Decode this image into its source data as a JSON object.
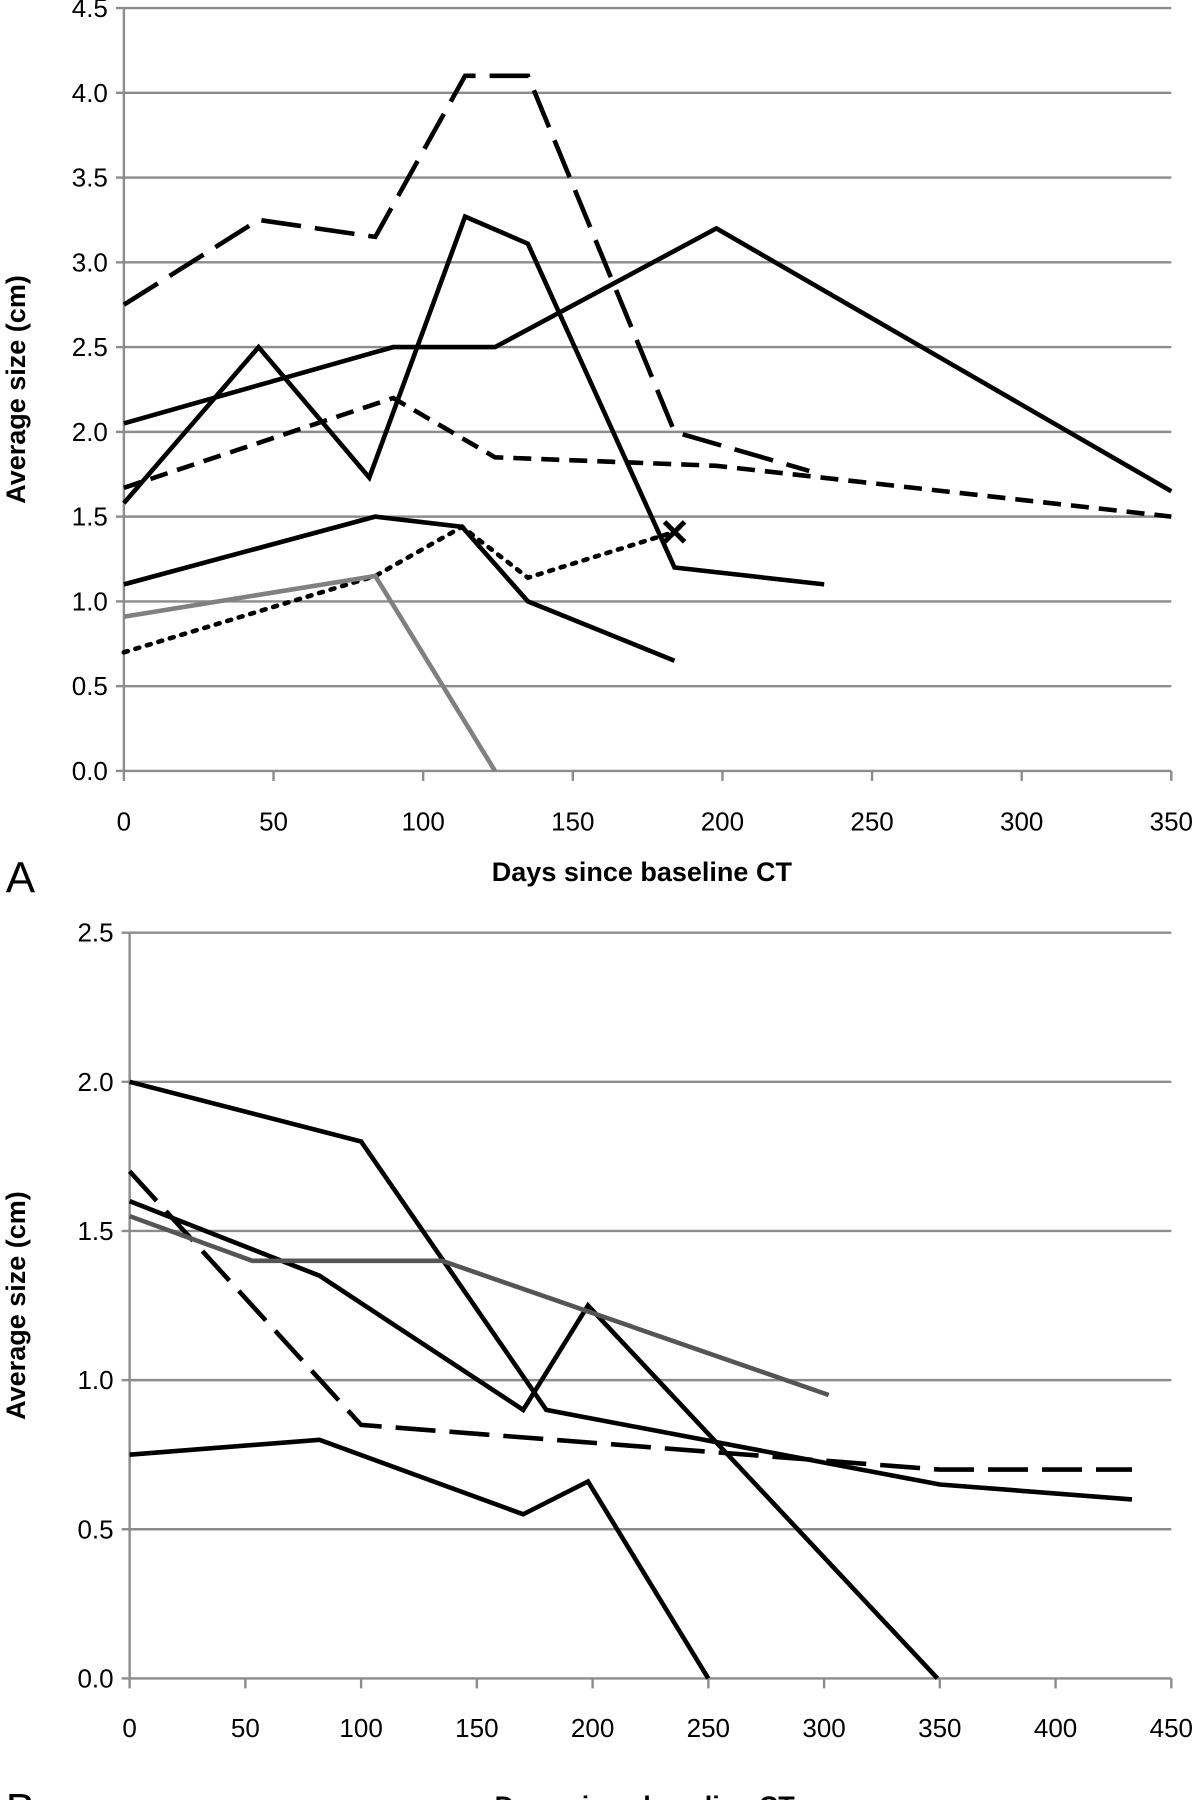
{
  "chart_data": [
    {
      "type": "line",
      "panel": "A",
      "xlabel": "Days since baseline CT",
      "ylabel": "Average size (cm)",
      "xlim": [
        0,
        350
      ],
      "ylim": [
        0,
        4.5
      ],
      "xticks": [
        0,
        50,
        100,
        150,
        200,
        250,
        300,
        350
      ],
      "yticks": [
        "0.0",
        "0.5",
        "1.0",
        "1.5",
        "2.0",
        "2.5",
        "3.0",
        "3.5",
        "4.0",
        "4.5"
      ],
      "grid": "horizontal",
      "series": [
        {
          "color": "#000000",
          "dash": "long-dash",
          "points": [
            [
              0,
              2.75
            ],
            [
              45,
              3.25
            ],
            [
              84,
              3.15
            ],
            [
              114,
              4.1
            ],
            [
              135,
              4.1
            ],
            [
              184,
              2.0
            ],
            [
              229,
              1.77
            ]
          ]
        },
        {
          "color": "#000000",
          "dash": "solid",
          "points": [
            [
              0,
              2.05
            ],
            [
              90,
              2.5
            ],
            [
              124,
              2.5
            ],
            [
              198,
              3.2
            ],
            [
              350,
              1.65
            ]
          ]
        },
        {
          "color": "#000000",
          "dash": "solid",
          "points": [
            [
              0,
              1.58
            ],
            [
              45,
              2.5
            ],
            [
              82,
              1.73
            ],
            [
              114,
              3.27
            ],
            [
              135,
              3.11
            ],
            [
              184,
              1.2
            ],
            [
              234,
              1.1
            ]
          ]
        },
        {
          "color": "#000000",
          "dash": "short-dash",
          "points": [
            [
              0,
              1.67
            ],
            [
              90,
              2.2
            ],
            [
              124,
              1.85
            ],
            [
              198,
              1.8
            ],
            [
              350,
              1.5
            ]
          ]
        },
        {
          "color": "#000000",
          "dash": "solid",
          "points": [
            [
              0,
              1.1
            ],
            [
              84,
              1.5
            ],
            [
              113,
              1.44
            ],
            [
              135,
              1.0
            ],
            [
              184,
              0.65
            ]
          ]
        },
        {
          "color": "#000000",
          "dash": "dotted",
          "points": [
            [
              0,
              0.7
            ],
            [
              84,
              1.15
            ],
            [
              113,
              1.44
            ],
            [
              135,
              1.14
            ],
            [
              184,
              1.41
            ]
          ],
          "end_marker": "x"
        },
        {
          "color": "#808080",
          "dash": "solid",
          "points": [
            [
              0,
              0.91
            ],
            [
              84,
              1.15
            ],
            [
              124,
              0.0
            ]
          ]
        }
      ],
      "letter": "A"
    },
    {
      "type": "line",
      "panel": "B",
      "xlabel": "Days since baseline CT",
      "ylabel": "Average size (cm)",
      "xlim": [
        0,
        450
      ],
      "ylim": [
        0,
        2.5
      ],
      "xticks": [
        0,
        50,
        100,
        150,
        200,
        250,
        300,
        350,
        400,
        450
      ],
      "yticks": [
        "0.0",
        "0.5",
        "1.0",
        "1.5",
        "2.0",
        "2.5"
      ],
      "grid": "horizontal",
      "series": [
        {
          "color": "#000000",
          "dash": "solid",
          "points": [
            [
              0,
              2.0
            ],
            [
              100,
              1.8
            ],
            [
              180,
              0.9
            ],
            [
              350,
              0.65
            ],
            [
              433,
              0.6
            ]
          ]
        },
        {
          "color": "#000000",
          "dash": "long-dash",
          "points": [
            [
              0,
              1.7
            ],
            [
              100,
              0.85
            ],
            [
              350,
              0.7
            ],
            [
              433,
              0.7
            ]
          ]
        },
        {
          "color": "#000000",
          "dash": "solid",
          "points": [
            [
              0,
              1.6
            ],
            [
              82,
              1.35
            ],
            [
              170,
              0.9
            ],
            [
              198,
              1.25
            ],
            [
              349,
              0.0
            ]
          ]
        },
        {
          "color": "#555555",
          "dash": "solid",
          "points": [
            [
              0,
              1.55
            ],
            [
              53,
              1.4
            ],
            [
              135,
              1.4
            ],
            [
              302,
              0.95
            ]
          ]
        },
        {
          "color": "#000000",
          "dash": "solid",
          "points": [
            [
              0,
              0.75
            ],
            [
              82,
              0.8
            ],
            [
              170,
              0.55
            ],
            [
              198,
              0.66
            ],
            [
              250,
              0.0
            ]
          ]
        }
      ],
      "letter": "B"
    }
  ]
}
